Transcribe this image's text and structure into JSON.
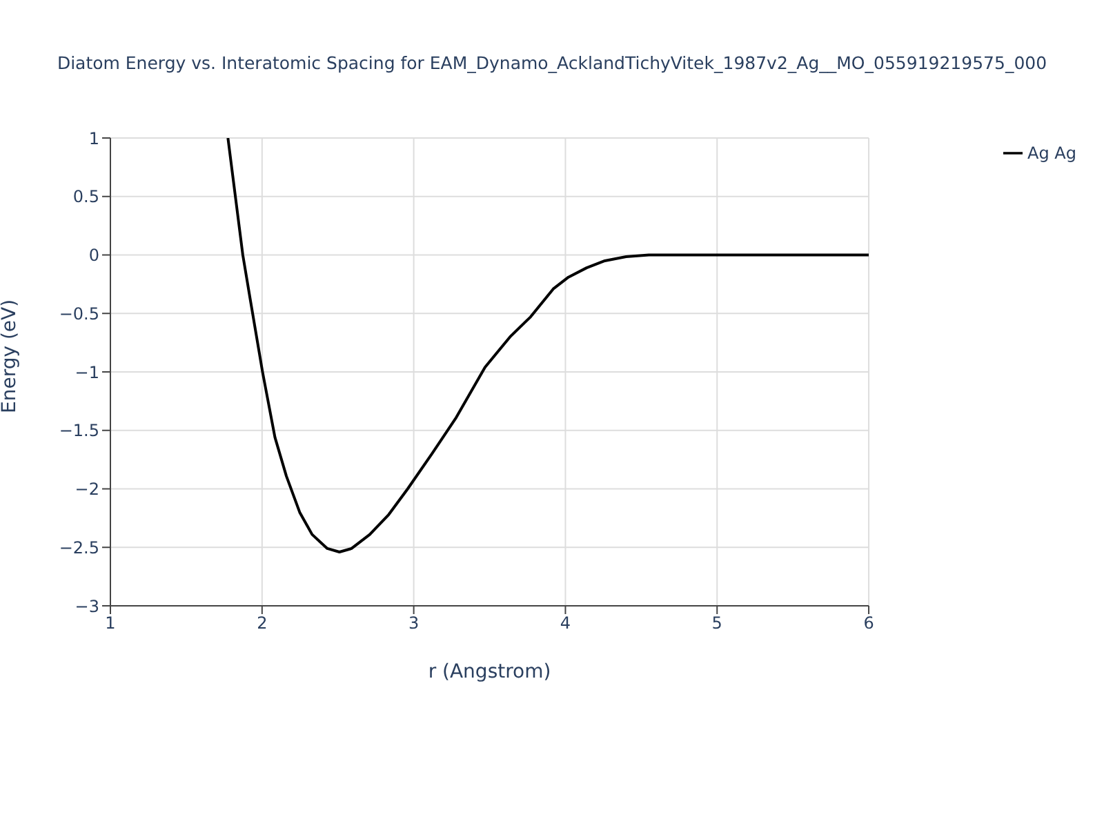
{
  "chart_data": {
    "type": "line",
    "title": "Diatom Energy vs. Interatomic Spacing for EAM_Dynamo_AcklandTichyVitek_1987v2_Ag__MO_055919219575_000",
    "xlabel": "r (Angstrom)",
    "ylabel": "Energy (eV)",
    "x": [
      1.775,
      1.873,
      1.922,
      2.003,
      2.085,
      2.16,
      2.248,
      2.33,
      2.43,
      2.51,
      2.59,
      2.71,
      2.835,
      2.96,
      3.12,
      3.28,
      3.47,
      3.635,
      3.77,
      3.92,
      4.02,
      4.14,
      4.26,
      4.4,
      4.55,
      6
    ],
    "series": [
      {
        "name": "Ag Ag",
        "color": "#000000",
        "values": [
          1.0,
          0,
          -0.38,
          -1.0,
          -1.56,
          -1.89,
          -2.2,
          -2.39,
          -2.51,
          -2.54,
          -2.51,
          -2.39,
          -2.22,
          -2.0,
          -1.7,
          -1.39,
          -0.96,
          -0.7,
          -0.53,
          -0.29,
          -0.19,
          -0.11,
          -0.05,
          -0.015,
          0,
          0
        ]
      }
    ],
    "xlim": [
      1,
      6
    ],
    "xticks": [
      1,
      2,
      3,
      4,
      5,
      6
    ],
    "ylim": [
      -3,
      1
    ],
    "yticks": [
      {
        "value": -3,
        "label": "−3"
      },
      {
        "value": -2.5,
        "label": "−2.5"
      },
      {
        "value": -2,
        "label": "−2"
      },
      {
        "value": -1.5,
        "label": "−1.5"
      },
      {
        "value": -1,
        "label": "−1"
      },
      {
        "value": -0.5,
        "label": "−0.5"
      },
      0,
      0.5,
      1
    ],
    "grid": true,
    "legend": "top right",
    "marker": "none",
    "line_style": "solid"
  }
}
